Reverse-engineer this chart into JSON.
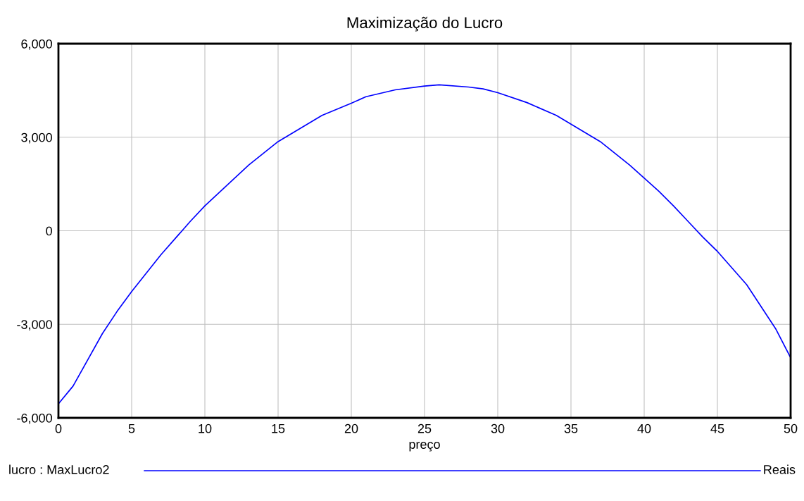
{
  "chart_data": {
    "type": "line",
    "title": "Maximização do Lucro",
    "xlabel": "preço",
    "x": [
      0,
      1,
      3,
      4,
      5,
      7,
      9,
      10,
      13,
      15,
      18,
      20,
      21,
      23,
      25,
      26,
      28,
      29,
      30,
      32,
      34,
      37,
      39,
      41,
      42,
      43,
      44,
      45,
      47,
      49,
      50
    ],
    "series": [
      {
        "name": "lucro : MaxLucro2",
        "color": "#0000ff",
        "values": [
          -5550,
          -4980,
          -3300,
          -2590,
          -1950,
          -770,
          300,
          800,
          2110,
          2860,
          3700,
          4090,
          4300,
          4520,
          4640,
          4680,
          4610,
          4550,
          4430,
          4110,
          3700,
          2860,
          2110,
          1270,
          800,
          300,
          -200,
          -660,
          -1730,
          -3160,
          -4070
        ]
      }
    ],
    "xlim": [
      0,
      50
    ],
    "xticks": [
      0,
      5,
      10,
      15,
      20,
      25,
      30,
      35,
      40,
      45,
      50
    ],
    "ylim": [
      -6000,
      6000
    ],
    "yticks": [
      {
        "value": -6000,
        "label": "-6,000"
      },
      {
        "value": -3000,
        "label": "-3,000"
      },
      0,
      {
        "value": 3000,
        "label": "3,000"
      },
      {
        "value": 6000,
        "label": "6,000"
      }
    ],
    "grid": true,
    "legend": "bottom",
    "annotations": [
      "Reais"
    ]
  }
}
